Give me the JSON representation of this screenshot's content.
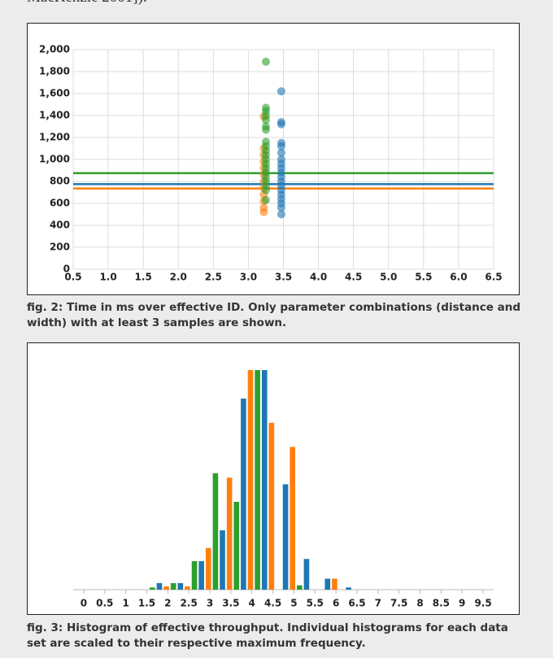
{
  "top_text": "MacKenzie 2001]).",
  "chart_data": [
    {
      "type": "scatter",
      "caption": "fig. 2: Time in ms over effective ID. Only parameter combinations (distance and width) with at least 3 samples are shown.",
      "xlim": [
        0.5,
        6.5
      ],
      "ylim": [
        0,
        2000
      ],
      "grid": true,
      "xticks": [
        0.5,
        {
          "value": 1,
          "label": "1.0"
        },
        1.5,
        {
          "value": 2,
          "label": "2.0"
        },
        2.5,
        {
          "value": 3,
          "label": "3.0"
        },
        3.5,
        {
          "value": 4,
          "label": "4.0"
        },
        4.5,
        {
          "value": 5,
          "label": "5.0"
        },
        5.5,
        {
          "value": 6,
          "label": "6.0"
        },
        6.5
      ],
      "yticks": [
        0,
        200,
        400,
        600,
        800,
        {
          "value": 1000,
          "label": "1,000"
        },
        {
          "value": 1200,
          "label": "1,200"
        },
        {
          "value": 1400,
          "label": "1,400"
        },
        {
          "value": 1600,
          "label": "1,600"
        },
        {
          "value": 1800,
          "label": "1,800"
        },
        {
          "value": 2000,
          "label": "2,000"
        }
      ],
      "series": [
        {
          "color": "#ff7f0e",
          "x": [
            3.22,
            3.22,
            3.22,
            3.22,
            3.22,
            3.22,
            3.22,
            3.22,
            3.22,
            3.22,
            3.22,
            3.22
          ],
          "values": [
            1390,
            1100,
            1040,
            980,
            920,
            860,
            800,
            740,
            680,
            620,
            560,
            520
          ]
        },
        {
          "color": "#2ca02c",
          "x": [
            3.25,
            3.25,
            3.25,
            3.25,
            3.25,
            3.25,
            3.25,
            3.25,
            3.25,
            3.25,
            3.25,
            3.25,
            3.25,
            3.25,
            3.25,
            3.25,
            3.25,
            3.25,
            3.25,
            3.25
          ],
          "values": [
            1890,
            1470,
            1440,
            1400,
            1360,
            1300,
            1270,
            1160,
            1120,
            1080,
            1040,
            1000,
            960,
            920,
            880,
            840,
            800,
            760,
            720,
            630
          ]
        },
        {
          "color": "#1f77b4",
          "x": [
            3.47,
            3.47,
            3.47,
            3.47,
            3.47,
            3.47,
            3.47,
            3.47,
            3.47,
            3.47,
            3.47,
            3.47,
            3.47,
            3.47,
            3.47,
            3.47,
            3.47,
            3.47,
            3.47
          ],
          "values": [
            1620,
            1340,
            1320,
            1150,
            1120,
            1060,
            1000,
            960,
            920,
            880,
            840,
            800,
            760,
            720,
            680,
            640,
            600,
            560,
            500
          ]
        }
      ],
      "reference_lines": [
        {
          "color": "#2ca02c",
          "value": 875
        },
        {
          "color": "#1f77b4",
          "value": 775
        },
        {
          "color": "#ff7f0e",
          "value": 735
        }
      ]
    },
    {
      "type": "histogram",
      "caption": "fig. 3: Histogram of effective throughput. Individual histograms for each data set are scaled to their respective maximum frequency.",
      "xlim": [
        -0.25,
        9.75
      ],
      "ylim": [
        0,
        1
      ],
      "xticks": [
        0,
        0.5,
        1,
        1.5,
        2,
        2.5,
        3,
        3.5,
        4,
        4.5,
        5,
        5.5,
        6,
        6.5,
        7,
        7.5,
        8,
        8.5,
        9,
        9.5
      ],
      "bins": [
        1.55,
        2.05,
        2.55,
        3.05,
        3.55,
        4.05,
        4.55,
        5.05,
        5.55,
        6.05,
        6.55
      ],
      "series": [
        {
          "color": "#2ca02c",
          "values": [
            0.01,
            0.03,
            0.13,
            0.53,
            0.4,
            1,
            0,
            0.02,
            0,
            0
          ]
        },
        {
          "color": "#1f77b4",
          "values": [
            0.03,
            0.03,
            0.13,
            0.27,
            0.87,
            1,
            0.48,
            0.14,
            0.05,
            0.01
          ]
        },
        {
          "color": "#ff7f0e",
          "values": [
            0.015,
            0.015,
            0.19,
            0.51,
            1,
            0.76,
            0.65,
            0,
            0.05,
            0
          ]
        }
      ]
    }
  ]
}
